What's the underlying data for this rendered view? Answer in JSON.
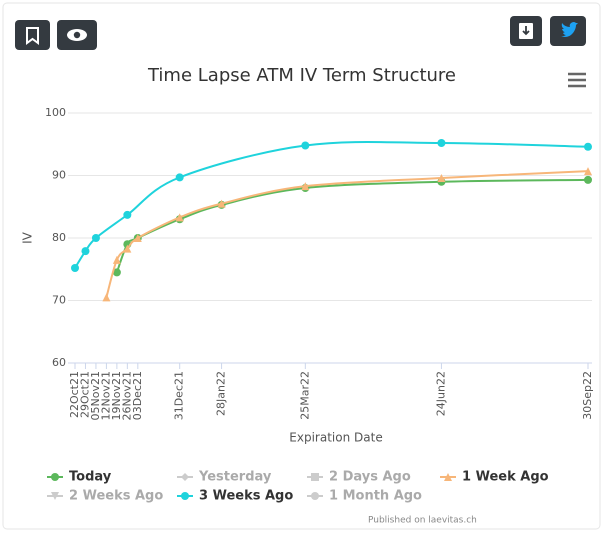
{
  "chart_data": {
    "type": "line",
    "title": "Time Lapse ATM IV Term Structure",
    "x_label": "Expiration Date",
    "y_label": "IV",
    "xlim": [
      "22Oct21",
      "30Sep22"
    ],
    "xticks": [
      "22Oct21",
      "29Oct21",
      "05Nov21",
      "12Nov21",
      "19Nov21",
      "26Nov21",
      "03Dec21",
      "31Dec21",
      "28Jan22",
      "25Mar22",
      "24Jun22",
      "30Sep22"
    ],
    "ylim": [
      60,
      100
    ],
    "yticks": [
      60,
      70,
      80,
      90,
      100
    ],
    "grid": true,
    "series": [
      {
        "name": "Today",
        "color": "#5cb85c",
        "symbol": "circle",
        "visible": true,
        "x": [
          "19Nov21",
          "26Nov21",
          "03Dec21",
          "31Dec21",
          "28Jan22",
          "25Mar22",
          "24Jun22",
          "30Sep22"
        ],
        "values": [
          74.5,
          79,
          80,
          83,
          85.3,
          88,
          89,
          89.3
        ]
      },
      {
        "name": "Yesterday",
        "color": "#cccccc",
        "symbol": "diamond",
        "visible": false
      },
      {
        "name": "2 Days Ago",
        "color": "#cccccc",
        "symbol": "square",
        "visible": false
      },
      {
        "name": "1 Week Ago",
        "color": "#f7b679",
        "symbol": "triangle",
        "visible": true,
        "x": [
          "12Nov21",
          "19Nov21",
          "26Nov21",
          "03Dec21",
          "31Dec21",
          "28Jan22",
          "25Mar22",
          "24Jun22",
          "30Sep22"
        ],
        "values": [
          70.5,
          76.5,
          78.3,
          80,
          83.3,
          85.5,
          88.3,
          89.6,
          90.7
        ]
      },
      {
        "name": "2 Weeks Ago",
        "color": "#cccccc",
        "symbol": "triangle-down",
        "visible": false
      },
      {
        "name": "3 Weeks Ago",
        "color": "#1fd3dc",
        "symbol": "circle",
        "visible": true,
        "x": [
          "22Oct21",
          "29Oct21",
          "05Nov21",
          "26Nov21",
          "31Dec21",
          "25Mar22",
          "24Jun22",
          "30Sep22"
        ],
        "values": [
          75.2,
          77.9,
          80,
          83.7,
          89.7,
          94.8,
          95.2,
          94.6
        ]
      },
      {
        "name": "1 Month Ago",
        "color": "#cccccc",
        "symbol": "circle",
        "visible": false
      }
    ],
    "credits": "Published on laevitas.ch"
  }
}
